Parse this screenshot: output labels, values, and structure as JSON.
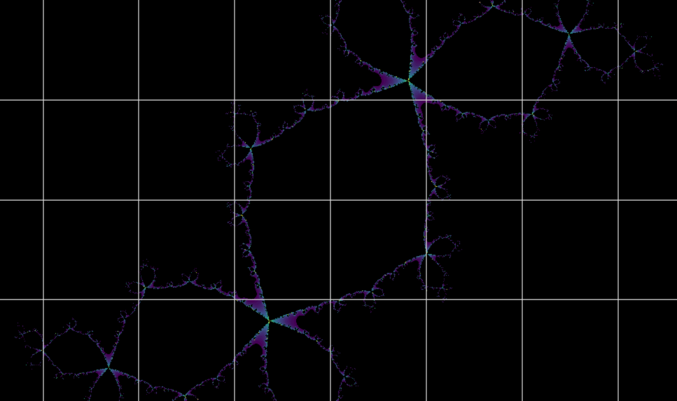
{
  "colors": {
    "background": "#000000",
    "grid_line": "#d9d9d9",
    "palette": [
      "#440154",
      "#3b528b",
      "#21918c",
      "#5ec962",
      "#fde725"
    ]
  },
  "fractal": {
    "kind": "julia-set",
    "colormap": "viridis"
  },
  "grid": {
    "visible": true
  }
}
